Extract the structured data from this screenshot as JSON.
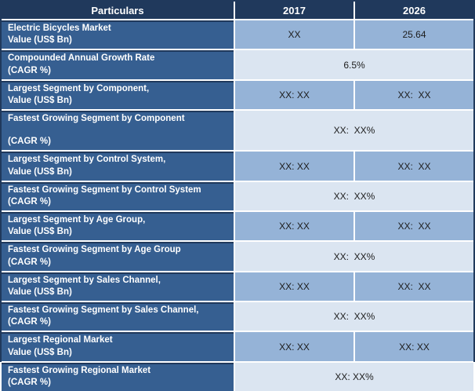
{
  "colors": {
    "header_bg": "#20395C",
    "label_bg": "#365F91",
    "value_bg_medium": "#95B3D7",
    "value_bg_light": "#DBE5F1",
    "grid_line": "#FFFFFF",
    "header_text": "#FFFFFF",
    "label_text": "#FFFFFF",
    "value_text": "#1C1C1C"
  },
  "chart_data": {
    "type": "table",
    "title": "Electric Bicycles Market summary table",
    "columns": [
      "Particulars",
      "2017",
      "2026"
    ],
    "rows": [
      {
        "label_line1": "Electric Bicycles Market",
        "label_line2": "Value (US$ Bn)",
        "value_2017": "XX",
        "value_2026": "25.64"
      },
      {
        "label_line1": "Compounded Annual Growth Rate",
        "label_line2": "(CAGR %)",
        "value_span": "6.5%"
      },
      {
        "label_line1": "Largest Segment by Component,",
        "label_line2": "Value (US$ Bn)",
        "value_2017": "XX: XX",
        "value_2026": "XX:  XX"
      },
      {
        "label_line1": "Fastest Growing Segment by Component",
        "label_line2": "(CAGR %)",
        "value_span": "XX:  XX%"
      },
      {
        "label_line1": "Largest Segment by Control System,",
        "label_line2": "Value (US$ Bn)",
        "value_2017": "XX: XX",
        "value_2026": "XX:  XX"
      },
      {
        "label_line1": "Fastest Growing Segment by Control System",
        "label_line2": "(CAGR %)",
        "value_span": "XX:  XX%"
      },
      {
        "label_line1": "Largest Segment by Age Group,",
        "label_line2": "Value (US$ Bn)",
        "value_2017": "XX: XX",
        "value_2026": "XX:  XX"
      },
      {
        "label_line1": "Fastest Growing Segment by Age Group",
        "label_line2": "(CAGR %)",
        "value_span": "XX:  XX%"
      },
      {
        "label_line1": "Largest Segment by Sales Channel,",
        "label_line2": "Value (US$ Bn)",
        "value_2017": "XX: XX",
        "value_2026": "XX:  XX"
      },
      {
        "label_line1": "Fastest Growing Segment by Sales Channel,",
        "label_line2": "(CAGR %)",
        "value_span": "XX:  XX%"
      },
      {
        "label_line1": "Largest Regional Market",
        "label_line2": "Value (US$ Bn)",
        "value_2017": "XX: XX",
        "value_2026": "XX: XX"
      },
      {
        "label_line1": "Fastest Growing Regional Market",
        "label_line2": "(CAGR %)",
        "value_span": "XX: XX%"
      }
    ]
  }
}
